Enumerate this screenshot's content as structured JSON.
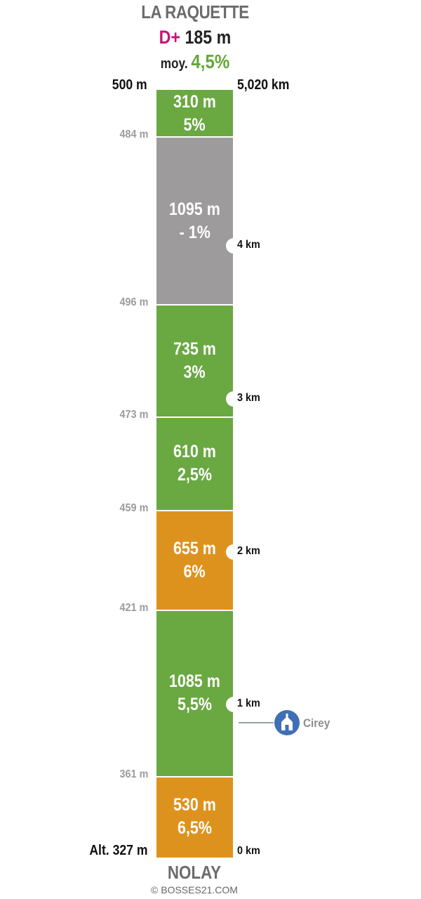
{
  "header": {
    "title": "LA RAQUETTE",
    "gain_prefix": "D+",
    "gain_value": "185 m",
    "avg_prefix": "moy.",
    "avg_value": "4,5%"
  },
  "top": {
    "altitude": "500 m",
    "total_distance": "5,020 km"
  },
  "bottom": {
    "altitude": "Alt. 327 m",
    "distance": "0 km",
    "start_name": "NOLAY",
    "copyright": "© BOSSES21.COM"
  },
  "colors": {
    "green": "#6aa842",
    "gray": "#9d9b9b",
    "orange": "#de921e",
    "magenta": "#c8147a",
    "poi_blue": "#3f6fb5"
  },
  "segments": [
    {
      "length": "530 m",
      "gradient": "6,5%",
      "color": "orange"
    },
    {
      "length": "1085 m",
      "gradient": "5,5%",
      "color": "green"
    },
    {
      "length": "655 m",
      "gradient": "6%",
      "color": "orange"
    },
    {
      "length": "610 m",
      "gradient": "2,5%",
      "color": "green"
    },
    {
      "length": "735 m",
      "gradient": "3%",
      "color": "green"
    },
    {
      "length": "1095 m",
      "gradient": "- 1%",
      "color": "gray"
    },
    {
      "length": "310 m",
      "gradient": "5%",
      "color": "green"
    }
  ],
  "intermediate_altitudes": [
    "361 m",
    "421 m",
    "459 m",
    "473 m",
    "496 m",
    "484 m"
  ],
  "km_markers": [
    "1 km",
    "2 km",
    "3 km",
    "4 km"
  ],
  "poi": {
    "name": "Cirey",
    "icon": "church-icon"
  }
}
